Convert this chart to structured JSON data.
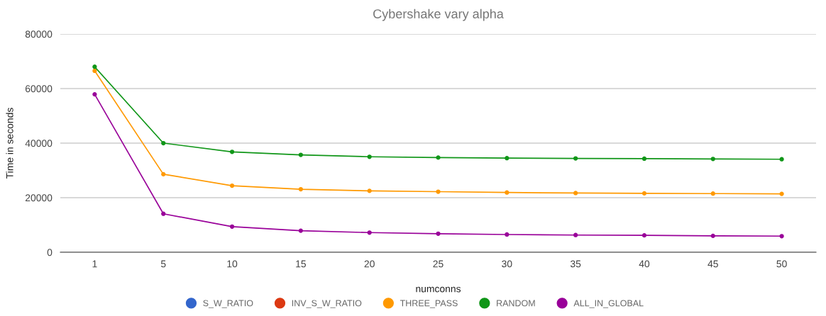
{
  "chart_data": {
    "type": "line",
    "title": "Cybershake vary alpha",
    "xlabel": "numconns",
    "ylabel": "Time in seconds",
    "categories": [
      "1",
      "5",
      "10",
      "15",
      "20",
      "25",
      "30",
      "35",
      "40",
      "45",
      "50"
    ],
    "series": [
      {
        "name": "S_W_RATIO",
        "color": "#3366cc",
        "values": [
          null,
          null,
          null,
          null,
          null,
          null,
          null,
          null,
          null,
          null,
          null
        ]
      },
      {
        "name": "INV_S_W_RATIO",
        "color": "#dc3912",
        "values": [
          null,
          null,
          null,
          null,
          null,
          null,
          null,
          null,
          null,
          null,
          null
        ]
      },
      {
        "name": "THREE_PASS",
        "color": "#ff9900",
        "values": [
          66500,
          28600,
          24400,
          23100,
          22500,
          22200,
          21900,
          21700,
          21600,
          21500,
          21400
        ]
      },
      {
        "name": "RANDOM",
        "color": "#109618",
        "values": [
          68000,
          40000,
          36800,
          35700,
          35000,
          34700,
          34500,
          34400,
          34300,
          34200,
          34100
        ]
      },
      {
        "name": "ALL_IN_GLOBAL",
        "color": "#990099",
        "values": [
          57900,
          14100,
          9400,
          7900,
          7200,
          6800,
          6500,
          6300,
          6200,
          6000,
          5900
        ]
      }
    ],
    "ylim": [
      0,
      80000
    ],
    "yticks": [
      0,
      20000,
      40000,
      60000,
      80000
    ],
    "grid": "y",
    "legend": "bottom",
    "marker": "circle",
    "line_style": "solid"
  }
}
